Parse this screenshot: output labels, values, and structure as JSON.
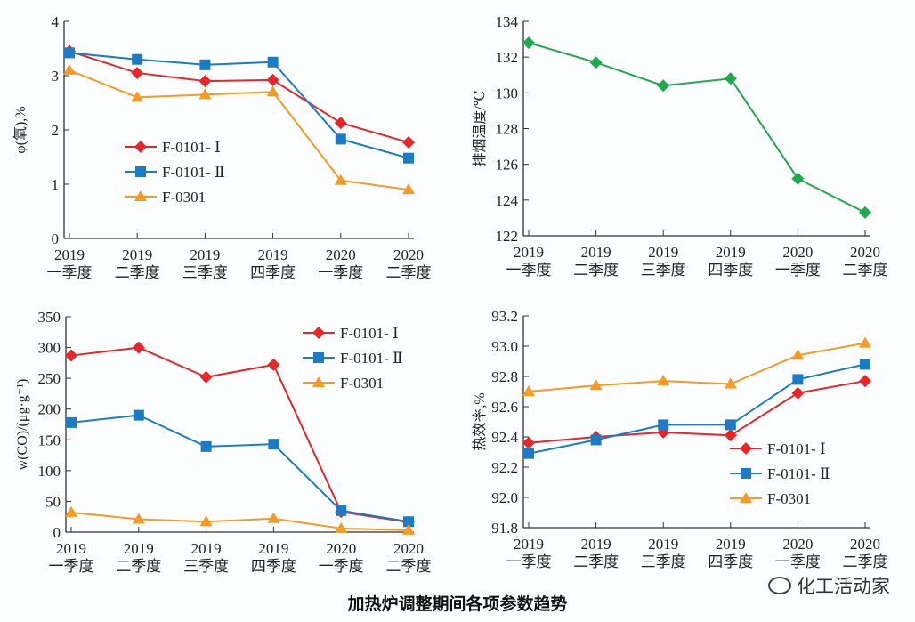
{
  "title": "加热炉调整期间各项参数趋势",
  "logo_text": "化工活动家",
  "colors": {
    "F-0101-I": "#e8262a",
    "F-0101-II": "#1b7bc4",
    "F-0301": "#f59a23",
    "single": "#20a94a"
  },
  "chart_data": [
    {
      "type": "line",
      "ylabel": "φ(氧),%",
      "categories": [
        "2019\n一季度",
        "2019\n二季度",
        "2019\n三季度",
        "2019\n四季度",
        "2020\n一季度",
        "2020\n二季度"
      ],
      "ylim": [
        0,
        4
      ],
      "yticks": [
        0,
        1,
        2,
        3,
        4
      ],
      "legend": "middle-left",
      "series": [
        {
          "name": "F-0101- Ⅰ",
          "marker": "diamond",
          "values": [
            3.45,
            3.05,
            2.9,
            2.92,
            2.13,
            1.77
          ]
        },
        {
          "name": "F-0101- Ⅱ",
          "marker": "square",
          "values": [
            3.42,
            3.3,
            3.2,
            3.25,
            1.83,
            1.48
          ]
        },
        {
          "name": "F-0301",
          "marker": "triangle",
          "values": [
            3.1,
            2.6,
            2.65,
            2.7,
            1.07,
            0.9
          ]
        }
      ]
    },
    {
      "type": "line",
      "ylabel": "排烟温度/℃",
      "categories": [
        "2019\n一季度",
        "2019\n二季度",
        "2019\n三季度",
        "2019\n四季度",
        "2020\n一季度",
        "2020\n二季度"
      ],
      "ylim": [
        122,
        134
      ],
      "yticks": [
        122,
        124,
        126,
        128,
        130,
        132,
        134
      ],
      "series": [
        {
          "marker": "diamond",
          "values": [
            132.8,
            131.7,
            130.4,
            130.8,
            125.2,
            123.3
          ]
        }
      ]
    },
    {
      "type": "line",
      "ylabel": "w(CO)/(μg·g⁻¹)",
      "categories": [
        "2019\n一季度",
        "2019\n二季度",
        "2019\n三季度",
        "2019\n四季度",
        "2020\n一季度",
        "2020\n二季度"
      ],
      "ylim": [
        0,
        350
      ],
      "yticks": [
        0,
        50,
        100,
        150,
        200,
        250,
        300,
        350
      ],
      "legend": "top-right",
      "series": [
        {
          "name": "F-0101- Ⅰ",
          "marker": "diamond",
          "values": [
            287,
            300,
            252,
            272,
            33,
            16
          ]
        },
        {
          "name": "F-0101- Ⅱ",
          "marker": "square",
          "values": [
            178,
            190,
            139,
            143,
            35,
            17
          ]
        },
        {
          "name": "F-0301",
          "marker": "triangle",
          "values": [
            32,
            21,
            17,
            22,
            6,
            3
          ]
        }
      ]
    },
    {
      "type": "line",
      "ylabel": "热效率,%",
      "categories": [
        "2019\n一季度",
        "2019\n二季度",
        "2019\n三季度",
        "2019\n四季度",
        "2020\n一季度",
        "2020\n二季度"
      ],
      "ylim": [
        91.8,
        93.2
      ],
      "yticks": [
        91.8,
        92.0,
        92.2,
        92.4,
        92.6,
        92.8,
        93.0,
        93.2
      ],
      "legend": "bottom-center",
      "series": [
        {
          "name": "F-0101- Ⅰ",
          "marker": "diamond",
          "values": [
            92.36,
            92.4,
            92.43,
            92.41,
            92.69,
            92.77
          ]
        },
        {
          "name": "F-0101- Ⅱ",
          "marker": "square",
          "values": [
            92.29,
            92.38,
            92.48,
            92.48,
            92.78,
            92.88
          ]
        },
        {
          "name": "F-0301",
          "marker": "triangle",
          "values": [
            92.7,
            92.74,
            92.77,
            92.75,
            92.94,
            93.02
          ]
        }
      ]
    }
  ]
}
